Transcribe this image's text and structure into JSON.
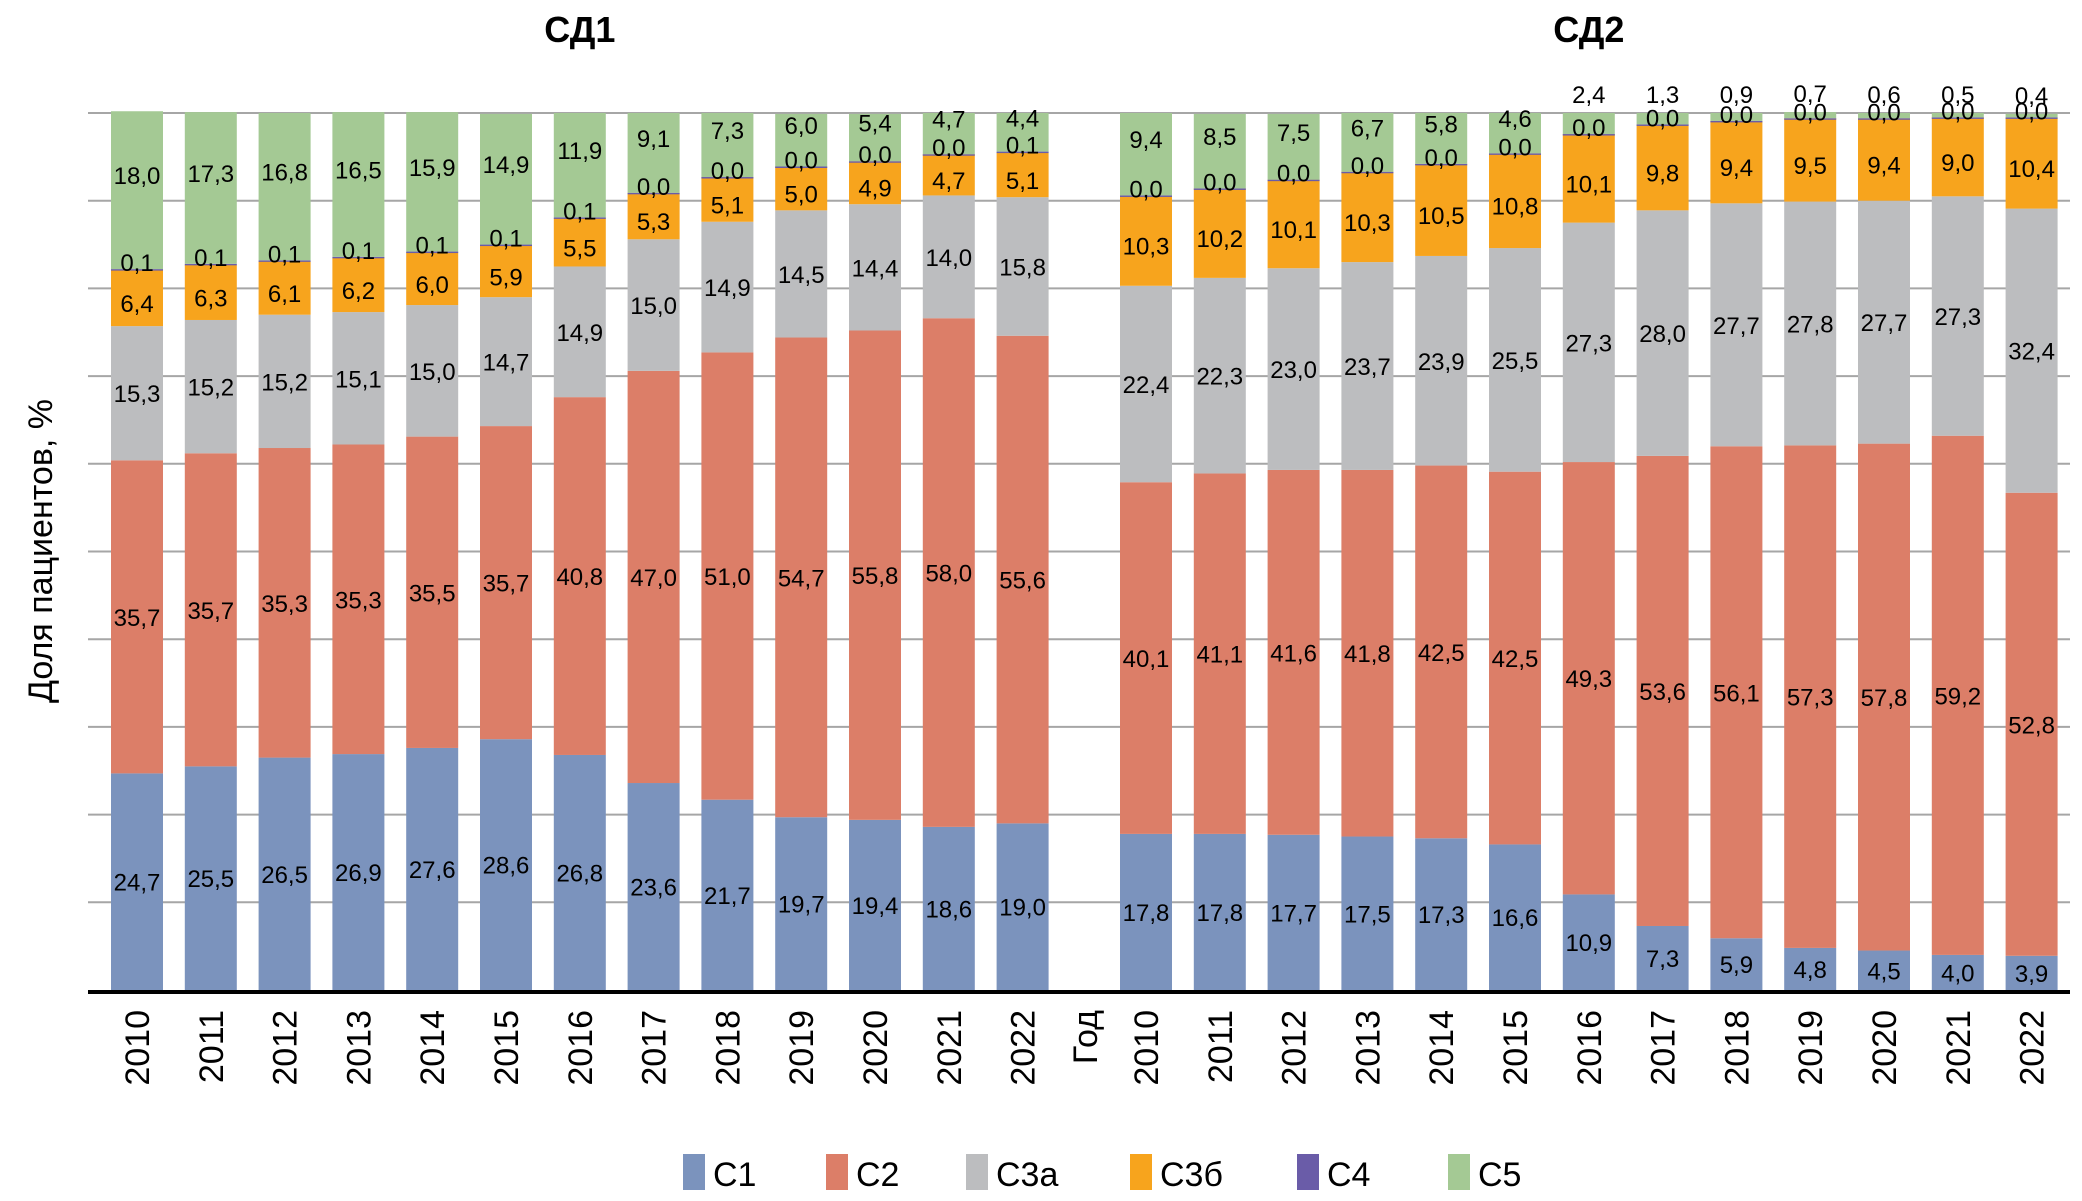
{
  "chart_data": {
    "type": "bar",
    "stacked": true,
    "ylabel": "Доля пациентов, %",
    "xlabel": "Год",
    "ylim": [
      0,
      100
    ],
    "grid": true,
    "legend_position": "bottom",
    "series_colors": {
      "C1": "#7b93bd",
      "C2": "#dc7e68",
      "C3a": "#bcbdbf",
      "C3b": "#f7a41d",
      "C4": "#6a5ca8",
      "C5": "#a4c994"
    },
    "legend": [
      {
        "key": "C1",
        "label": "С1"
      },
      {
        "key": "C2",
        "label": "С2"
      },
      {
        "key": "C3a",
        "label": "С3а"
      },
      {
        "key": "C3b",
        "label": "С3б"
      },
      {
        "key": "C4",
        "label": "С4"
      },
      {
        "key": "C5",
        "label": "С5"
      }
    ],
    "panels": [
      {
        "title": "СД1",
        "categories": [
          "2010",
          "2011",
          "2012",
          "2013",
          "2014",
          "2015",
          "2016",
          "2017",
          "2018",
          "2019",
          "2020",
          "2021",
          "2022"
        ],
        "series": [
          {
            "key": "C1",
            "name": "С1",
            "values": [
              24.7,
              25.5,
              26.5,
              26.9,
              27.6,
              28.6,
              26.8,
              23.6,
              21.7,
              19.7,
              19.4,
              18.6,
              19.0
            ]
          },
          {
            "key": "C2",
            "name": "С2",
            "values": [
              35.7,
              35.7,
              35.3,
              35.3,
              35.5,
              35.7,
              40.8,
              47.0,
              51.0,
              54.7,
              55.8,
              58.0,
              55.6
            ]
          },
          {
            "key": "C3a",
            "name": "С3а",
            "values": [
              15.3,
              15.2,
              15.2,
              15.1,
              15.0,
              14.7,
              14.9,
              15.0,
              14.9,
              14.5,
              14.4,
              14.0,
              15.8
            ]
          },
          {
            "key": "C3b",
            "name": "С3б",
            "values": [
              6.4,
              6.3,
              6.1,
              6.2,
              6.0,
              5.9,
              5.5,
              5.3,
              5.1,
              5.0,
              4.9,
              4.7,
              5.1
            ]
          },
          {
            "key": "C4",
            "name": "С4",
            "values": [
              0.1,
              0.1,
              0.1,
              0.1,
              0.1,
              0.1,
              0.1,
              0.0,
              0.0,
              0.0,
              0.0,
              0.0,
              0.1
            ]
          },
          {
            "key": "C5",
            "name": "С5",
            "values": [
              18.0,
              17.3,
              16.8,
              16.5,
              15.9,
              14.9,
              11.9,
              9.1,
              7.3,
              6.0,
              5.4,
              4.7,
              4.4
            ]
          }
        ]
      },
      {
        "title": "СД2",
        "categories": [
          "2010",
          "2011",
          "2012",
          "2013",
          "2014",
          "2015",
          "2016",
          "2017",
          "2018",
          "2019",
          "2020",
          "2021",
          "2022"
        ],
        "series": [
          {
            "key": "C1",
            "name": "С1",
            "values": [
              17.8,
              17.8,
              17.7,
              17.5,
              17.3,
              16.6,
              10.9,
              7.3,
              5.9,
              4.8,
              4.5,
              4.0,
              3.9
            ]
          },
          {
            "key": "C2",
            "name": "С2",
            "values": [
              40.1,
              41.1,
              41.6,
              41.8,
              42.5,
              42.5,
              49.3,
              53.6,
              56.1,
              57.3,
              57.8,
              59.2,
              52.8
            ]
          },
          {
            "key": "C3a",
            "name": "С3а",
            "values": [
              22.4,
              22.3,
              23.0,
              23.7,
              23.9,
              25.5,
              27.3,
              28.0,
              27.7,
              27.8,
              27.7,
              27.3,
              32.4
            ]
          },
          {
            "key": "C3b",
            "name": "С3б",
            "values": [
              10.3,
              10.2,
              10.1,
              10.3,
              10.5,
              10.8,
              10.1,
              9.8,
              9.4,
              9.5,
              9.4,
              9.0,
              10.4
            ]
          },
          {
            "key": "C4",
            "name": "С4",
            "values": [
              0.0,
              0.0,
              0.0,
              0.0,
              0.0,
              0.0,
              0.0,
              0.0,
              0.0,
              0.0,
              0.0,
              0.0,
              0.0
            ]
          },
          {
            "key": "C5",
            "name": "С5",
            "values": [
              9.4,
              8.5,
              7.5,
              6.7,
              5.8,
              4.6,
              2.4,
              1.3,
              0.9,
              0.7,
              0.6,
              0.5,
              0.4
            ]
          }
        ]
      }
    ]
  }
}
